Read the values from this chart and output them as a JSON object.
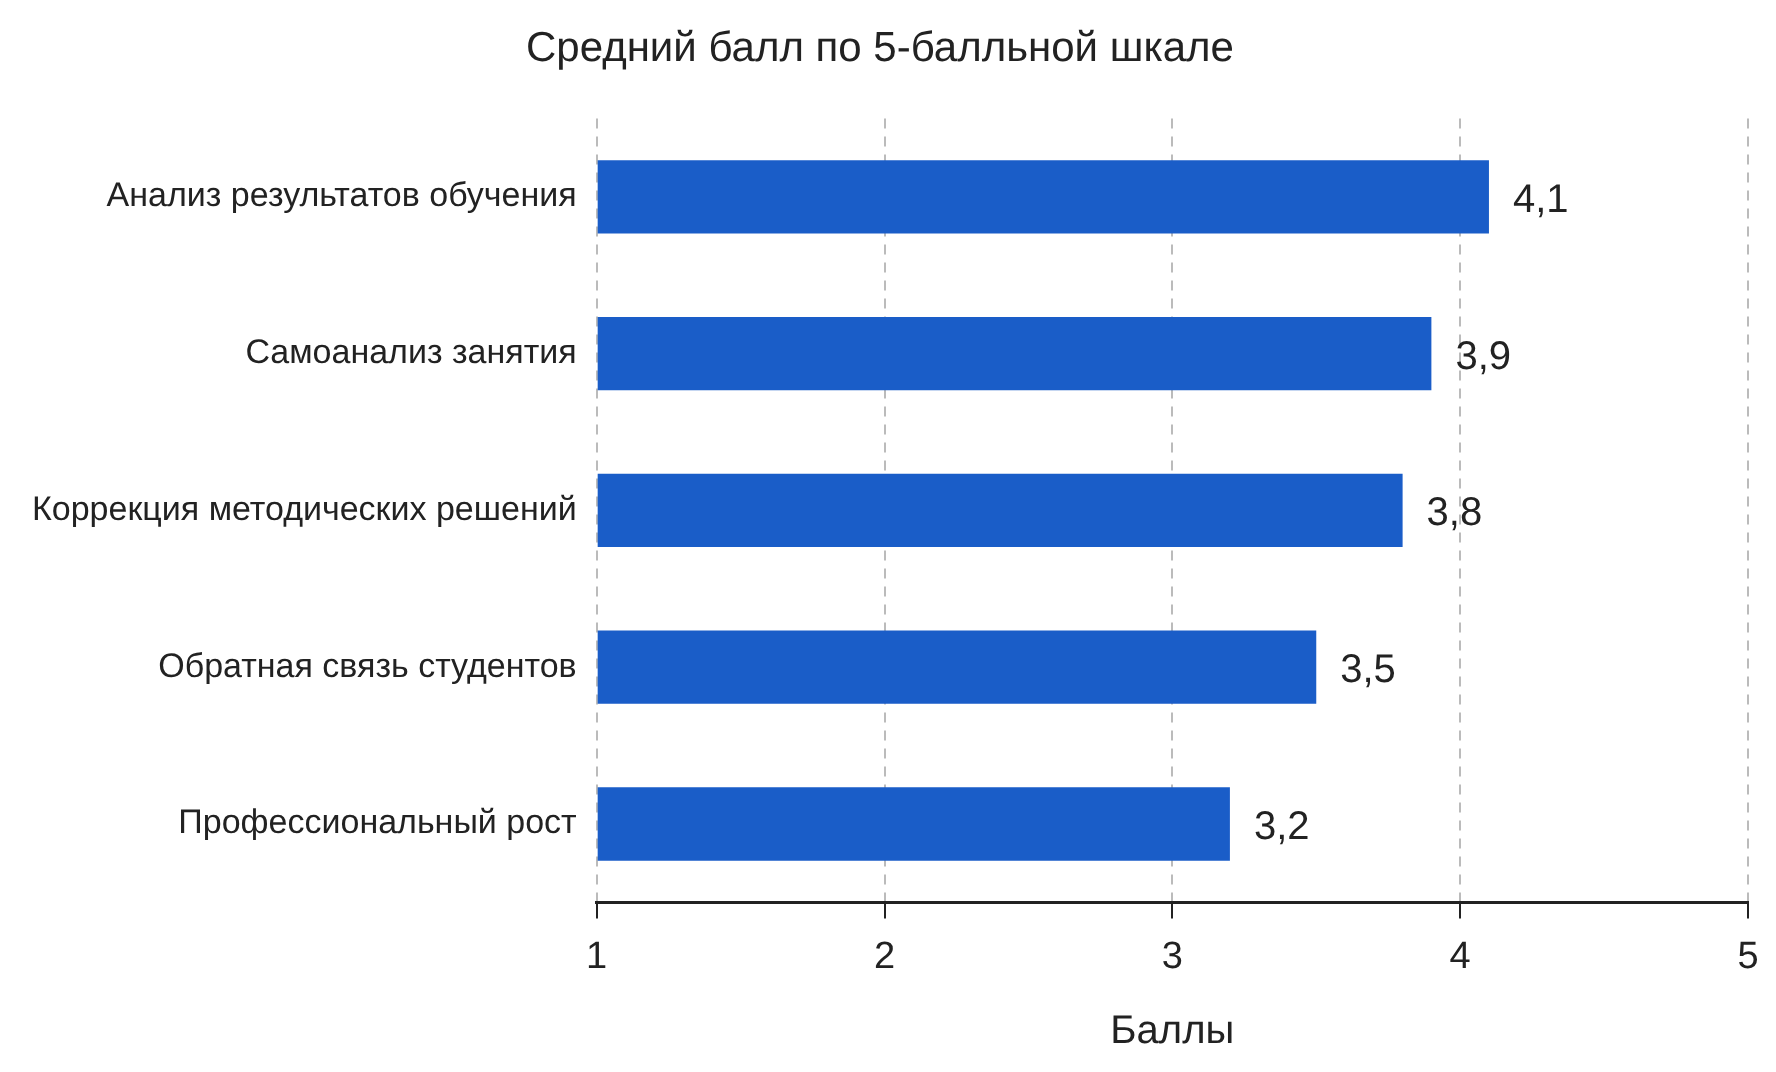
{
  "chart_data": {
    "type": "bar",
    "orientation": "horizontal",
    "title": "Средний балл по 5-балльной шкале",
    "xlabel": "Баллы",
    "categories": [
      "Анализ результатов обучения",
      "Самоанализ занятия",
      "Коррекция методических решений",
      "Обратная связь студентов",
      "Профессиональный рост"
    ],
    "values": [
      4.1,
      3.9,
      3.8,
      3.5,
      3.2
    ],
    "value_labels": [
      "4,1",
      "3,9",
      "3,8",
      "3,5",
      "3,2"
    ],
    "color": "#1a5dc8",
    "xlim": [
      1,
      5
    ],
    "xticks": [
      1,
      2,
      3,
      4,
      5
    ],
    "grid": "x",
    "legend": false
  }
}
